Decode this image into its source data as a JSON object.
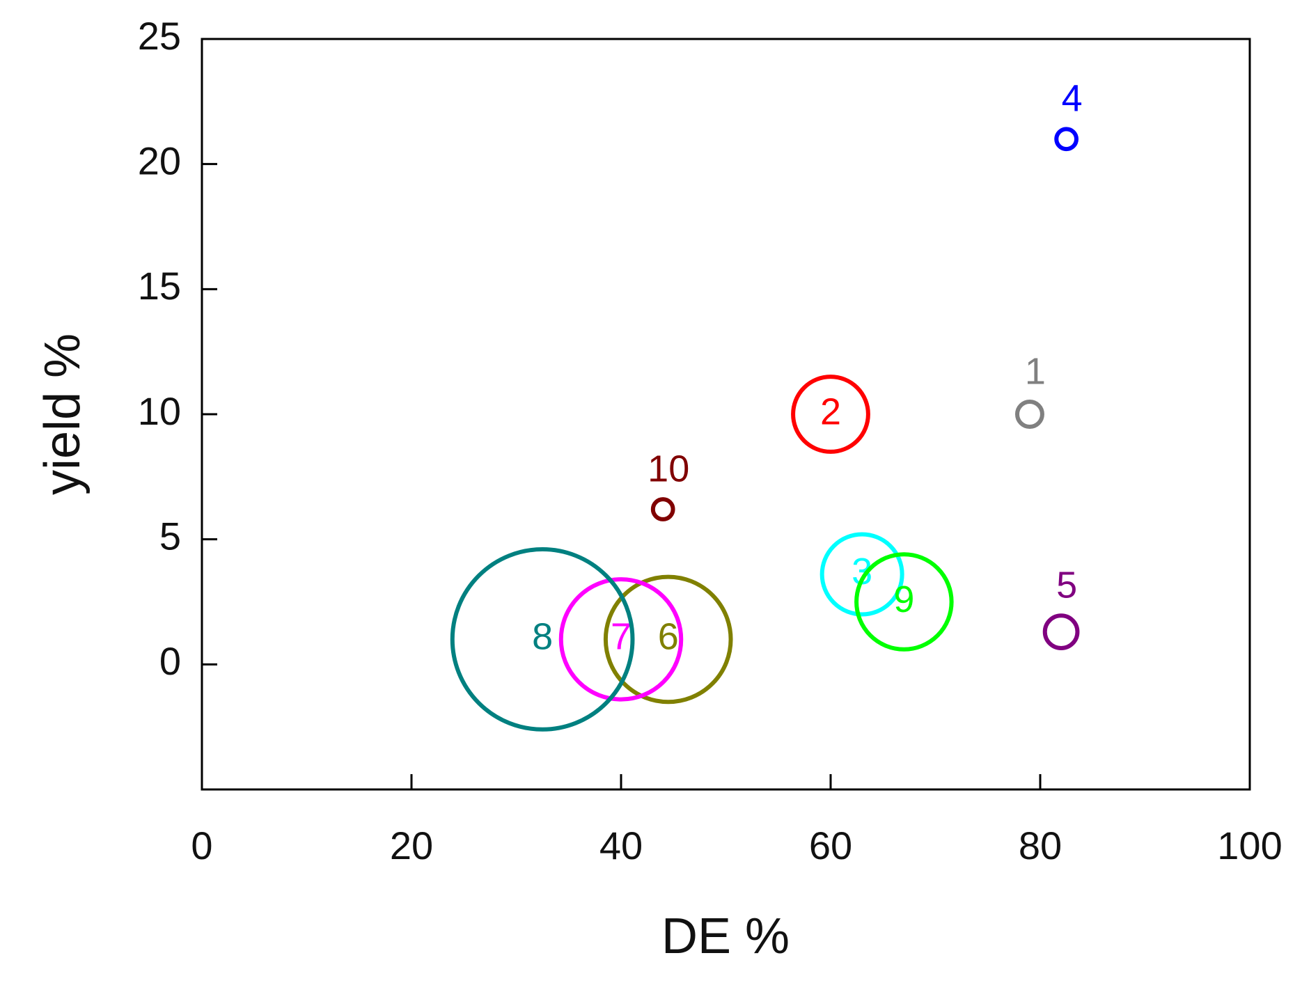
{
  "chart_data": {
    "type": "bubble",
    "x_label": "DE %",
    "y_label": "yield %",
    "xlim": [
      0,
      100
    ],
    "xticks": [
      0,
      20,
      40,
      60,
      80,
      100
    ],
    "ylim": [
      -5,
      25
    ],
    "yticks": [
      0,
      5,
      10,
      15,
      20,
      25
    ],
    "labels": [
      "1",
      "2",
      "3",
      "4",
      "5",
      "6",
      "7",
      "8",
      "9",
      "10"
    ],
    "x": [
      79,
      60,
      63,
      82.5,
      82,
      44.5,
      40,
      32.5,
      67,
      44
    ],
    "values": [
      10,
      10,
      3.6,
      21,
      1.3,
      1,
      1,
      1,
      2.5,
      6.2
    ],
    "sizes": [
      0.5,
      1.5,
      1.6,
      0.4,
      0.65,
      2.5,
      2.4,
      3.6,
      1.9,
      0.4
    ],
    "colors": [
      "#808080",
      "#ff0000",
      "#00ffff",
      "#0000ff",
      "#800080",
      "#808000",
      "#ff00ff",
      "#008080",
      "#00ff00",
      "#800000"
    ]
  }
}
